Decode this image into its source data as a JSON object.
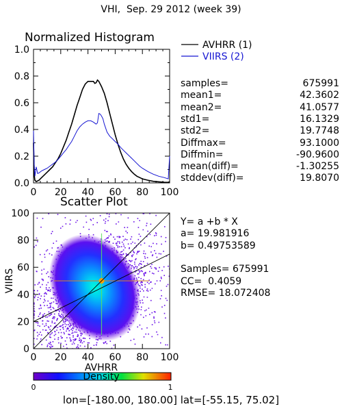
{
  "title": "VHI,  Sep. 29 2012 (week 39)",
  "footer": "lon=[-180.00, 180.00] lat=[-55.15, 75.02]",
  "colors": {
    "avhrr": "#000000",
    "viirs": "#1414d2"
  },
  "stats": [
    {
      "label": "samples=",
      "value": "675991"
    },
    {
      "label": "mean1=",
      "value": "42.3602"
    },
    {
      "label": "mean2=",
      "value": "41.0577"
    },
    {
      "label": "std1=",
      "value": "16.1329"
    },
    {
      "label": "std2=",
      "value": "19.7748"
    },
    {
      "label": "Diffmax=",
      "value": "93.1000"
    },
    {
      "label": "Diffmin=",
      "value": "-90.9600"
    },
    {
      "label": "mean(diff)=",
      "value": "-1.30255"
    },
    {
      "label": "stddev(diff)=",
      "value": "19.8070"
    }
  ],
  "fit": [
    "Y= a +b * X",
    "a= 19.981916",
    "b= 0.49753589",
    "",
    "Samples= 675991",
    "CC=  0.4059",
    "RMSE= 18.072408"
  ],
  "chart_data": [
    {
      "type": "line",
      "title": "Normalized Histogram",
      "xlim": [
        0,
        100
      ],
      "ylim": [
        0,
        1.0
      ],
      "xticks": [
        0,
        20,
        40,
        60,
        80,
        100
      ],
      "yticks": [
        0.0,
        0.2,
        0.4,
        0.6,
        0.8,
        1.0
      ],
      "ytick_labels": [
        "0.0",
        "0.2",
        "0.4",
        "0.6",
        "0.8",
        "1.0"
      ],
      "legend_position": "right",
      "series": [
        {
          "name": "AVHRR (1)",
          "color": "#000000",
          "points": [
            [
              0,
              0.3
            ],
            [
              0.5,
              0.06
            ],
            [
              1,
              0.02
            ],
            [
              2,
              0.01
            ],
            [
              4,
              0.02
            ],
            [
              6,
              0.04
            ],
            [
              8,
              0.06
            ],
            [
              10,
              0.08
            ],
            [
              12,
              0.1
            ],
            [
              14,
              0.12
            ],
            [
              16,
              0.15
            ],
            [
              18,
              0.18
            ],
            [
              20,
              0.22
            ],
            [
              22,
              0.27
            ],
            [
              24,
              0.32
            ],
            [
              26,
              0.38
            ],
            [
              28,
              0.44
            ],
            [
              30,
              0.51
            ],
            [
              32,
              0.58
            ],
            [
              34,
              0.64
            ],
            [
              36,
              0.7
            ],
            [
              38,
              0.74
            ],
            [
              40,
              0.76
            ],
            [
              42,
              0.76
            ],
            [
              44,
              0.76
            ],
            [
              45,
              0.745
            ],
            [
              46,
              0.75
            ],
            [
              47,
              0.77
            ],
            [
              48,
              0.76
            ],
            [
              50,
              0.72
            ],
            [
              52,
              0.67
            ],
            [
              54,
              0.6
            ],
            [
              56,
              0.52
            ],
            [
              58,
              0.44
            ],
            [
              60,
              0.36
            ],
            [
              62,
              0.29
            ],
            [
              64,
              0.23
            ],
            [
              66,
              0.18
            ],
            [
              68,
              0.14
            ],
            [
              70,
              0.11
            ],
            [
              72,
              0.085
            ],
            [
              74,
              0.065
            ],
            [
              76,
              0.05
            ],
            [
              78,
              0.04
            ],
            [
              80,
              0.03
            ],
            [
              84,
              0.02
            ],
            [
              88,
              0.012
            ],
            [
              92,
              0.008
            ],
            [
              96,
              0.005
            ],
            [
              99,
              0.004
            ],
            [
              100,
              0.01
            ]
          ]
        },
        {
          "name": "VIIRS (2)",
          "color": "#1414d2",
          "points": [
            [
              0,
              0.39
            ],
            [
              0.5,
              0.14
            ],
            [
              1,
              0.05
            ],
            [
              2,
              0.12
            ],
            [
              3,
              0.07
            ],
            [
              4,
              0.075
            ],
            [
              6,
              0.09
            ],
            [
              8,
              0.1
            ],
            [
              10,
              0.11
            ],
            [
              12,
              0.125
            ],
            [
              14,
              0.14
            ],
            [
              16,
              0.155
            ],
            [
              18,
              0.175
            ],
            [
              20,
              0.2
            ],
            [
              22,
              0.225
            ],
            [
              24,
              0.25
            ],
            [
              26,
              0.28
            ],
            [
              28,
              0.31
            ],
            [
              30,
              0.35
            ],
            [
              32,
              0.39
            ],
            [
              34,
              0.42
            ],
            [
              36,
              0.44
            ],
            [
              38,
              0.455
            ],
            [
              40,
              0.465
            ],
            [
              42,
              0.465
            ],
            [
              44,
              0.455
            ],
            [
              46,
              0.44
            ],
            [
              47,
              0.45
            ],
            [
              48,
              0.52
            ],
            [
              49,
              0.515
            ],
            [
              50,
              0.5
            ],
            [
              51,
              0.48
            ],
            [
              52,
              0.44
            ],
            [
              54,
              0.38
            ],
            [
              56,
              0.35
            ],
            [
              58,
              0.33
            ],
            [
              60,
              0.31
            ],
            [
              62,
              0.29
            ],
            [
              64,
              0.265
            ],
            [
              66,
              0.245
            ],
            [
              68,
              0.225
            ],
            [
              70,
              0.205
            ],
            [
              72,
              0.185
            ],
            [
              74,
              0.165
            ],
            [
              76,
              0.145
            ],
            [
              78,
              0.125
            ],
            [
              80,
              0.11
            ],
            [
              84,
              0.085
            ],
            [
              88,
              0.065
            ],
            [
              92,
              0.05
            ],
            [
              96,
              0.04
            ],
            [
              99,
              0.03
            ],
            [
              100,
              0.2
            ]
          ]
        }
      ]
    },
    {
      "type": "scatter",
      "title": "Scatter Plot",
      "xlabel": "AVHRR",
      "ylabel": "VIIRS",
      "xlim": [
        0,
        100
      ],
      "ylim": [
        0,
        100
      ],
      "xticks": [
        0,
        20,
        40,
        60,
        80,
        100
      ],
      "yticks": [
        0,
        20,
        40,
        60,
        80,
        100
      ],
      "samples": 675991,
      "fit": {
        "a": 19.981916,
        "b": 0.49753589
      },
      "reference_line": "1:1",
      "colorbar": {
        "label": "Density",
        "min": "0",
        "max": "1"
      }
    }
  ]
}
